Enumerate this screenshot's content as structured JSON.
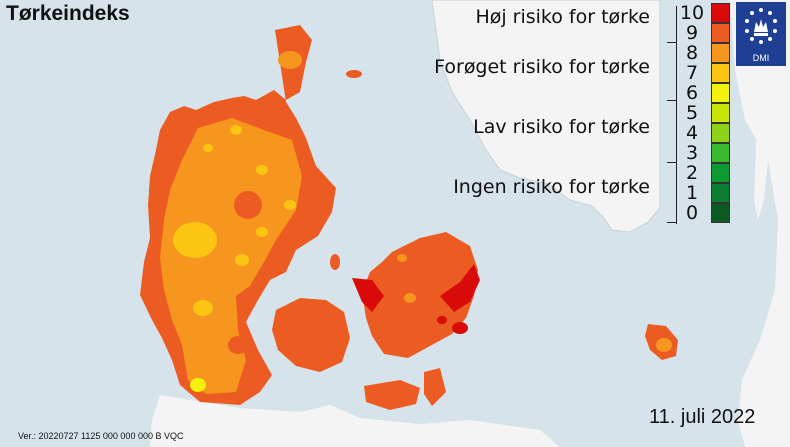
{
  "title": "Tørkeindeks",
  "categories": [
    {
      "label": "Høj risiko for tørke"
    },
    {
      "label": "Forøget risiko for tørke"
    },
    {
      "label": "Lav risiko for tørke"
    },
    {
      "label": "Ingen risiko for tørke"
    }
  ],
  "scale": {
    "values": [
      "10",
      "9",
      "8",
      "7",
      "6",
      "5",
      "4",
      "3",
      "2",
      "1",
      "0"
    ],
    "colors": [
      "#d90a0a",
      "#ec5b22",
      "#f7961f",
      "#fbc512",
      "#f2f20d",
      "#cbe60b",
      "#8fd318",
      "#39b92b",
      "#0e9a33",
      "#0a7d2e",
      "#0b5a22"
    ]
  },
  "logo": {
    "text": "DMI"
  },
  "version": "Ver.: 20220727 1125 000 000 000 B VQC",
  "date": "11. juli 2022"
}
